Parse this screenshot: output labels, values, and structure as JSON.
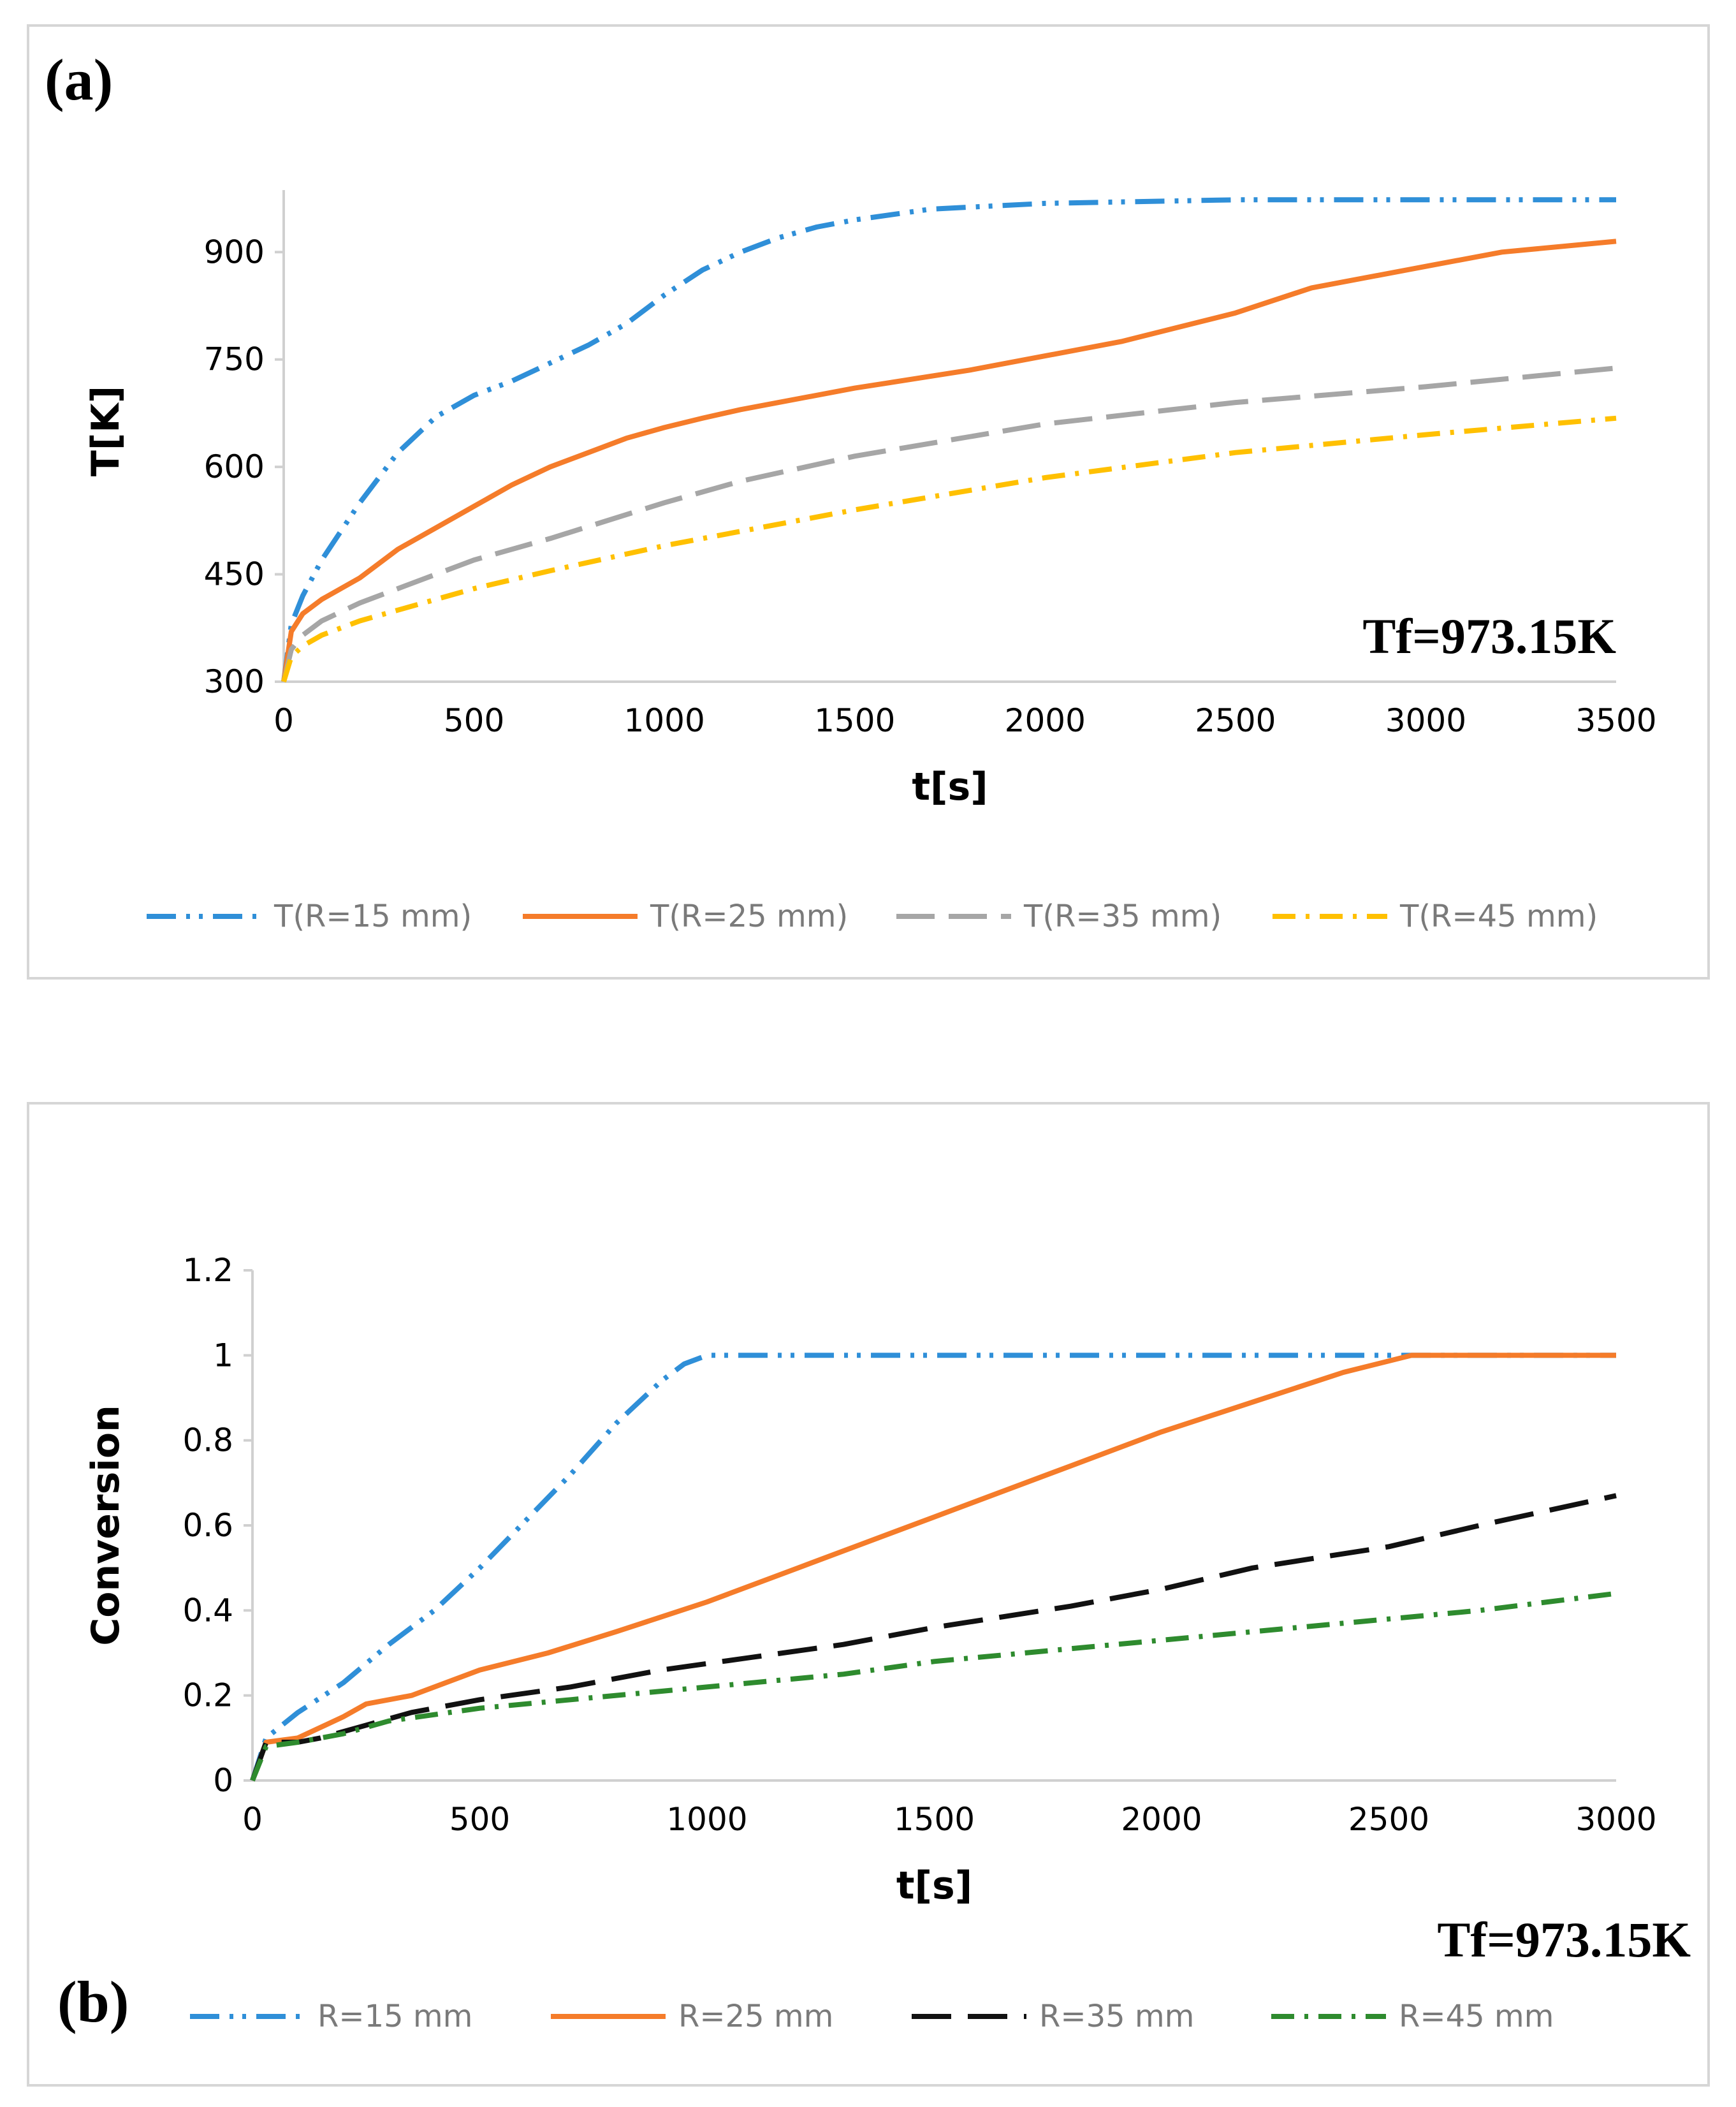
{
  "chart_data": [
    {
      "type": "line",
      "panel_label": "(a)",
      "annotation": "Tf=973.15K",
      "xlabel": "t[s]",
      "ylabel": "T[K]",
      "xlim": [
        0,
        3500
      ],
      "ylim": [
        300,
        1000
      ],
      "x_ticks": [
        0,
        500,
        1000,
        1500,
        2000,
        2500,
        3000,
        3500
      ],
      "y_ticks": [
        300,
        450,
        600,
        750,
        900
      ],
      "legend": "bottom",
      "series": [
        {
          "name": "T(R=15 mm)",
          "color": "#2f8fd8",
          "dash": "dash-dot-dot",
          "x": [
            0,
            20,
            50,
            100,
            200,
            300,
            400,
            500,
            600,
            700,
            800,
            900,
            1000,
            1100,
            1200,
            1300,
            1400,
            1500,
            1700,
            2000,
            2500,
            3000,
            3500
          ],
          "y": [
            300,
            380,
            420,
            470,
            550,
            620,
            670,
            700,
            720,
            745,
            770,
            800,
            840,
            875,
            900,
            920,
            935,
            945,
            960,
            968,
            973,
            973,
            973
          ]
        },
        {
          "name": "T(R=25 mm)",
          "color": "#f57c2a",
          "dash": "solid",
          "x": [
            0,
            20,
            50,
            100,
            200,
            300,
            400,
            500,
            600,
            700,
            800,
            900,
            1000,
            1100,
            1200,
            1500,
            1800,
            2000,
            2200,
            2500,
            2700,
            3000,
            3200,
            3500
          ],
          "y": [
            300,
            370,
            395,
            415,
            445,
            485,
            515,
            545,
            575,
            600,
            620,
            640,
            655,
            668,
            680,
            710,
            735,
            755,
            775,
            815,
            850,
            880,
            900,
            915
          ]
        },
        {
          "name": "T(R=35 mm)",
          "color": "#a6a6a6",
          "dash": "dash",
          "x": [
            0,
            20,
            50,
            100,
            200,
            300,
            500,
            700,
            1000,
            1200,
            1500,
            2000,
            2500,
            3000,
            3500
          ],
          "y": [
            300,
            345,
            365,
            385,
            410,
            430,
            470,
            500,
            550,
            580,
            615,
            660,
            690,
            712,
            738
          ]
        },
        {
          "name": "T(R=45 mm)",
          "color": "#ffc000",
          "dash": "dash-dot",
          "x": [
            0,
            20,
            50,
            100,
            200,
            300,
            500,
            700,
            1000,
            1500,
            2000,
            2500,
            3000,
            3500
          ],
          "y": [
            300,
            335,
            350,
            365,
            385,
            400,
            430,
            455,
            490,
            540,
            585,
            620,
            645,
            668
          ]
        }
      ]
    },
    {
      "type": "line",
      "panel_label": "(b)",
      "annotation": "Tf=973.15K",
      "xlabel": "t[s]",
      "ylabel": "Conversion",
      "xlim": [
        0,
        3000
      ],
      "ylim": [
        0,
        1.2
      ],
      "x_ticks": [
        0,
        500,
        1000,
        1500,
        2000,
        2500,
        3000
      ],
      "y_ticks": [
        "0",
        "0.2",
        "0.4",
        "0.6",
        "0.8",
        "1",
        "1.2"
      ],
      "legend": "bottom",
      "series": [
        {
          "name": "R=15 mm",
          "color": "#2f8fd8",
          "dash": "dash-dot-dot",
          "x": [
            0,
            30,
            100,
            200,
            300,
            400,
            500,
            600,
            700,
            800,
            900,
            950,
            1000,
            1500,
            2000,
            2500,
            3000
          ],
          "y": [
            0,
            0.1,
            0.16,
            0.23,
            0.32,
            0.4,
            0.5,
            0.61,
            0.72,
            0.84,
            0.94,
            0.98,
            1,
            1,
            1,
            1,
            1
          ]
        },
        {
          "name": "R=25 mm",
          "color": "#f57c2a",
          "dash": "solid",
          "x": [
            0,
            30,
            100,
            200,
            250,
            350,
            500,
            650,
            800,
            1000,
            1200,
            1500,
            1800,
            2000,
            2200,
            2400,
            2550,
            2700,
            3000
          ],
          "y": [
            0,
            0.09,
            0.1,
            0.15,
            0.18,
            0.2,
            0.26,
            0.3,
            0.35,
            0.42,
            0.5,
            0.62,
            0.74,
            0.82,
            0.89,
            0.96,
            1,
            1,
            1
          ]
        },
        {
          "name": "R=35 mm",
          "color": "#111111",
          "dash": "long-dash",
          "x": [
            0,
            30,
            100,
            150,
            250,
            350,
            500,
            700,
            900,
            1100,
            1300,
            1500,
            1800,
            2000,
            2200,
            2500,
            2700,
            3000
          ],
          "y": [
            0,
            0.09,
            0.09,
            0.1,
            0.13,
            0.16,
            0.19,
            0.22,
            0.26,
            0.29,
            0.32,
            0.36,
            0.41,
            0.45,
            0.5,
            0.55,
            0.6,
            0.67
          ]
        },
        {
          "name": "R=45 mm",
          "color": "#2e8b2e",
          "dash": "dash-dot",
          "x": [
            0,
            30,
            100,
            200,
            300,
            500,
            700,
            900,
            1100,
            1300,
            1500,
            1800,
            2000,
            2200,
            2500,
            2700,
            3000
          ],
          "y": [
            0,
            0.08,
            0.09,
            0.11,
            0.14,
            0.17,
            0.19,
            0.21,
            0.23,
            0.25,
            0.28,
            0.31,
            0.33,
            0.35,
            0.38,
            0.4,
            0.44
          ]
        }
      ]
    }
  ]
}
